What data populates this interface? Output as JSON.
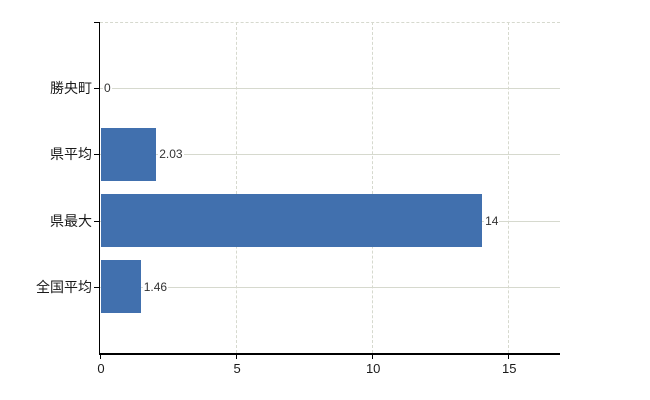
{
  "chart_data": {
    "type": "bar",
    "orientation": "horizontal",
    "title": "",
    "xlabel": "",
    "ylabel": "",
    "categories": [
      "勝央町",
      "県平均",
      "県最大",
      "全国平均"
    ],
    "values": [
      0,
      2.03,
      14,
      1.46
    ],
    "value_labels": [
      "0",
      "2.03",
      "14",
      "1.46"
    ],
    "xlim": [
      0,
      16.9
    ],
    "x_ticks": [
      0,
      5,
      10,
      15
    ],
    "x_tick_labels": [
      "0",
      "5",
      "10",
      "15"
    ],
    "legend": "none",
    "grid": {
      "horizontal_lines": "solid, one per category row",
      "vertical_lines": "dashed, at ticks 5 10 15",
      "top_border": "dashed"
    },
    "colors": {
      "bar": "#4170ae",
      "gridline": "#d6d9ce",
      "axis": "#000000",
      "category_text": "#1a1a1a",
      "value_text": "#333333",
      "background": "#ffffff"
    }
  }
}
